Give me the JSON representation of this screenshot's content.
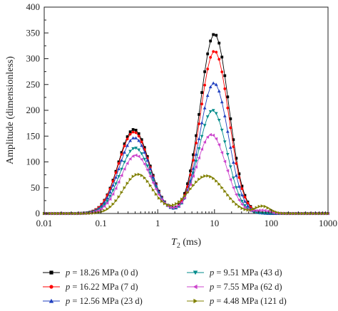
{
  "chart_data": {
    "type": "line",
    "title": "",
    "xlabel": "T2 (ms)",
    "xlabel_main": "T",
    "xlabel_sub": "2",
    "xlabel_unit": " (ms)",
    "ylabel": "Amplitude (dimensionless)",
    "xscale": "log",
    "xlim": [
      0.01,
      1000
    ],
    "ylim": [
      0,
      400
    ],
    "x_ticks": [
      0.01,
      0.1,
      1,
      10,
      100,
      1000
    ],
    "x_tick_labels": [
      "0.01",
      "0.1",
      "1",
      "10",
      "100",
      "1000"
    ],
    "y_ticks": [
      0,
      50,
      100,
      150,
      200,
      250,
      300,
      350,
      400
    ],
    "y_tick_labels": [
      "0",
      "50",
      "100",
      "150",
      "200",
      "250",
      "300",
      "350",
      "400"
    ],
    "grid": false,
    "legend_position": "bottom",
    "series": [
      {
        "name": "p = 18.26 MPa (0 d)",
        "label_var": "p",
        "label_rest": " = 18.26 MPa (0 d)",
        "color": "#000000",
        "marker": "square",
        "peak1": {
          "amp": 163,
          "center": 0.38,
          "width": 0.27
        },
        "peak2": {
          "amp": 348,
          "center": 10.0,
          "width": 0.25
        },
        "peak3": {
          "amp": 0,
          "center": 70,
          "width": 0.12
        }
      },
      {
        "name": "p = 16.22 MPa (7 d)",
        "label_var": "p",
        "label_rest": " = 16.22 MPa (7 d)",
        "color": "#ff0000",
        "marker": "circle",
        "peak1": {
          "amp": 158,
          "center": 0.38,
          "width": 0.27
        },
        "peak2": {
          "amp": 315,
          "center": 10.0,
          "width": 0.25
        },
        "peak3": {
          "amp": 0,
          "center": 70,
          "width": 0.12
        }
      },
      {
        "name": "p = 12.56 MPa (23 d)",
        "label_var": "p",
        "label_rest": " = 12.56 MPa (23 d)",
        "color": "#1f3fbf",
        "marker": "triangle-up",
        "peak1": {
          "amp": 147,
          "center": 0.39,
          "width": 0.27
        },
        "peak2": {
          "amp": 253,
          "center": 9.8,
          "width": 0.25
        },
        "peak3": {
          "amp": 0,
          "center": 70,
          "width": 0.12
        }
      },
      {
        "name": "p = 9.51 MPa (43 d)",
        "label_var": "p",
        "label_rest": " = 9.51 MPa (43 d)",
        "color": "#008b8b",
        "marker": "triangle-down",
        "peak1": {
          "amp": 127,
          "center": 0.4,
          "width": 0.27
        },
        "peak2": {
          "amp": 200,
          "center": 9.3,
          "width": 0.25
        },
        "peak3": {
          "amp": 0,
          "center": 70,
          "width": 0.12
        }
      },
      {
        "name": "p = 7.55 MPa (62 d)",
        "label_var": "p",
        "label_rest": " = 7.55 MPa (62 d)",
        "color": "#cc44cc",
        "marker": "triangle-left",
        "peak1": {
          "amp": 113,
          "center": 0.41,
          "width": 0.27
        },
        "peak2": {
          "amp": 153,
          "center": 8.8,
          "width": 0.26
        },
        "peak3": {
          "amp": 6,
          "center": 70,
          "width": 0.12
        }
      },
      {
        "name": "p = 4.48 MPa (121 d)",
        "label_var": "p",
        "label_rest": " = 4.48 MPa (121 d)",
        "color": "#808000",
        "marker": "triangle-right",
        "peak1": {
          "amp": 76,
          "center": 0.45,
          "width": 0.26
        },
        "peak2": {
          "amp": 73,
          "center": 7.3,
          "width": 0.31
        },
        "peak3": {
          "amp": 14,
          "center": 70,
          "width": 0.13
        }
      }
    ]
  }
}
